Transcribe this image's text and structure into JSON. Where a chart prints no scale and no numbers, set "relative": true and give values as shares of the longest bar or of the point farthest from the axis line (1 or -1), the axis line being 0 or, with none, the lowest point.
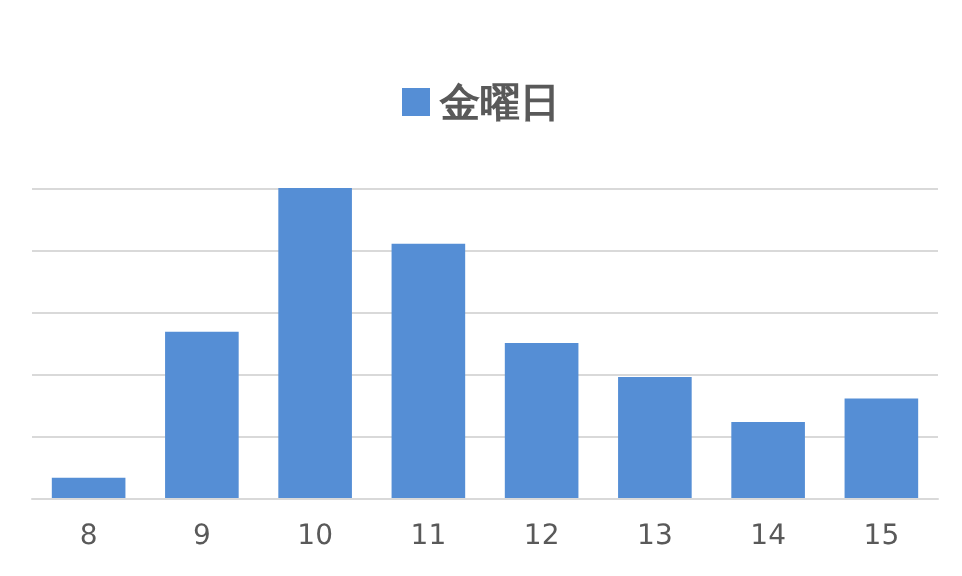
{
  "chart_data": {
    "type": "bar",
    "categories": [
      "8",
      "9",
      "10",
      "11",
      "12",
      "13",
      "14",
      "15"
    ],
    "series": [
      {
        "name": "金曜日",
        "color": "#558ed5",
        "values": [
          0.065,
          0.536,
          1,
          0.82,
          0.5,
          0.39,
          0.245,
          0.321
        ]
      }
    ],
    "relative": true,
    "grid": "y",
    "legend": "top"
  }
}
